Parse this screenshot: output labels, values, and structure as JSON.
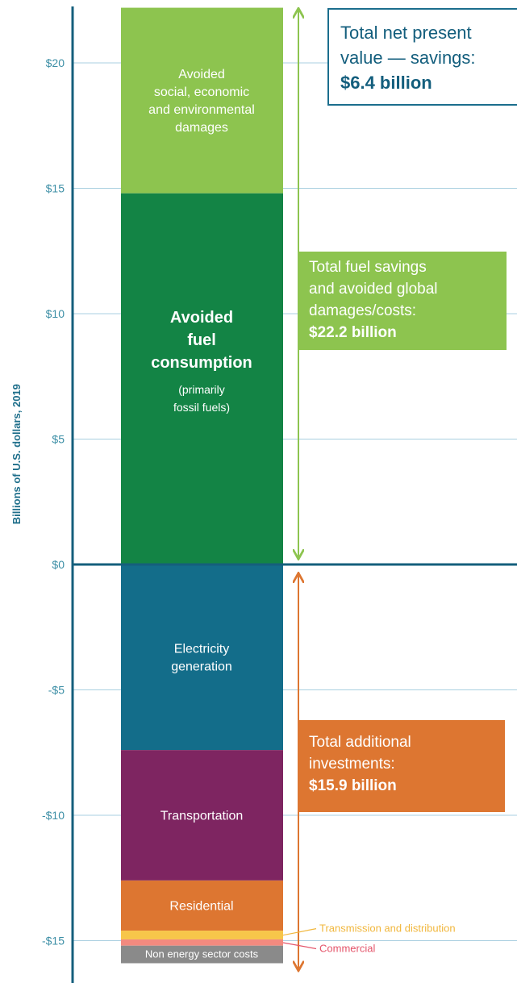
{
  "chart_data": {
    "type": "bar",
    "ylabel": "Billions of U.S. dollars, 2019",
    "ylim": [
      -16.3,
      22.2
    ],
    "yticks": [
      20,
      15,
      10,
      5,
      0,
      -5,
      -10,
      -15
    ],
    "ytick_labels": [
      "$20",
      "$15",
      "$10",
      "$5",
      "$0",
      "-$5",
      "-$10",
      "-$15"
    ],
    "grid": true,
    "segments": [
      {
        "id": "social",
        "lines": [
          "Avoided",
          "social, economic",
          "and environmental",
          "damages"
        ],
        "bottom": 14.8,
        "top": 22.2,
        "color": "#8dc44f",
        "style": "normal"
      },
      {
        "id": "fuel",
        "lines": [
          "Avoided",
          "fuel",
          "consumption"
        ],
        "sublines": [
          "(primarily",
          "fossil fuels)"
        ],
        "bottom": 0,
        "top": 14.8,
        "color": "#138445",
        "style": "bold"
      },
      {
        "id": "electricity",
        "lines": [
          "Electricity",
          "generation"
        ],
        "bottom": -7.4,
        "top": 0,
        "color": "#136d8a",
        "style": "normal"
      },
      {
        "id": "transport",
        "lines": [
          "Transportation"
        ],
        "bottom": -12.6,
        "top": -7.4,
        "color": "#7e2561",
        "style": "normal"
      },
      {
        "id": "residential",
        "lines": [
          "Residential"
        ],
        "bottom": -14.6,
        "top": -12.6,
        "color": "#dd7631",
        "style": "normal"
      },
      {
        "id": "transmission",
        "lines": [],
        "bottom": -14.95,
        "top": -14.6,
        "color": "#f7c64a",
        "style": "normal"
      },
      {
        "id": "commercial",
        "lines": [],
        "bottom": -15.2,
        "top": -14.95,
        "color": "#f28a7f",
        "style": "normal"
      },
      {
        "id": "nonenergy",
        "lines": [
          "Non energy sector costs"
        ],
        "bottom": -15.9,
        "top": -15.2,
        "color": "#8a8a8a",
        "style": "small"
      }
    ],
    "annotations": [
      {
        "id": "transmission",
        "text": "Transmission and distribution",
        "color": "#f1b73d",
        "y": -14.65
      },
      {
        "id": "commercial",
        "text": "Commercial",
        "color": "#e4546a",
        "y": -15.45
      }
    ],
    "arrows": [
      {
        "id": "savings",
        "from": 22.2,
        "to": 0,
        "color": "#8dc44f"
      },
      {
        "id": "investments",
        "from": 0,
        "to": -15.9,
        "color": "#dd7631"
      }
    ],
    "callouts": {
      "npv": {
        "text": [
          "Total net present",
          "value — savings:"
        ],
        "value": "$6.4 billion"
      },
      "fuel": {
        "text": [
          "Total fuel savings",
          "and avoided global",
          "damages/costs:"
        ],
        "value": "$22.2 billion"
      },
      "investments": {
        "text": [
          "Total additional",
          "investments:"
        ],
        "value": "$15.9 billion"
      }
    }
  }
}
